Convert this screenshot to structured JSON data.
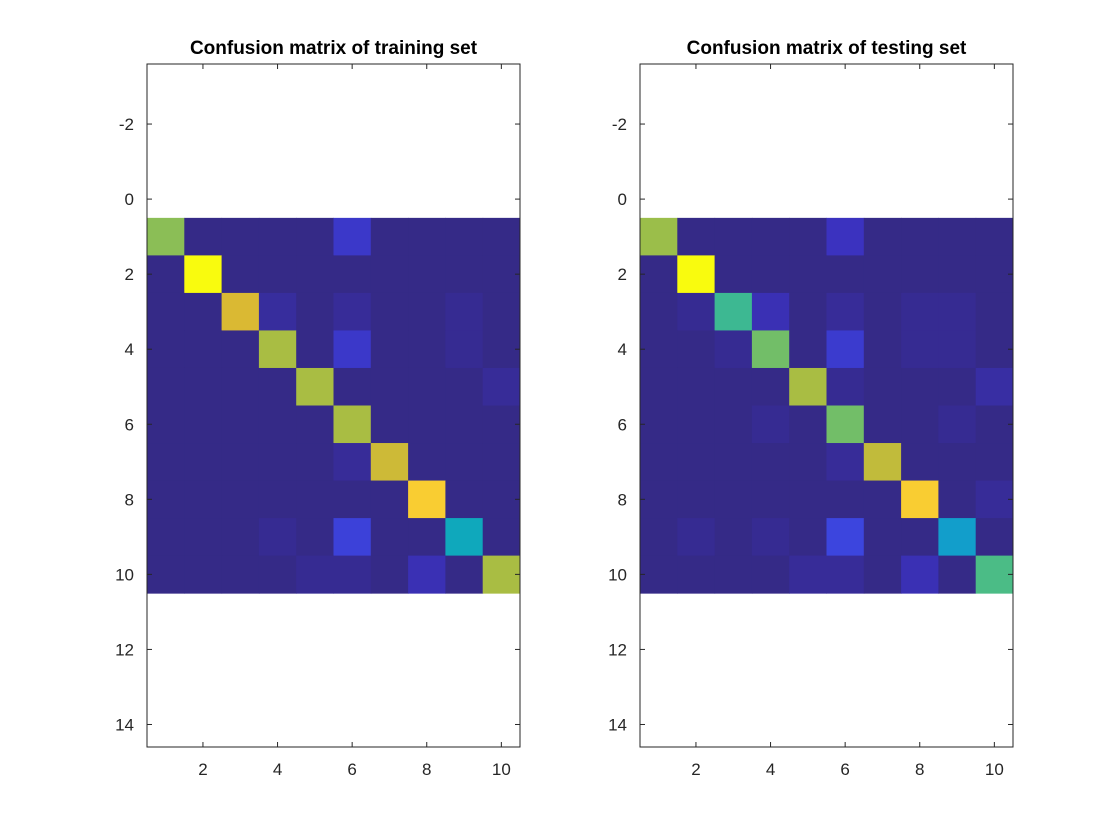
{
  "chart_data": [
    {
      "type": "heatmap",
      "title": "Confusion matrix of training set",
      "xlabel": "",
      "ylabel": "",
      "xlim": [
        0.5,
        10.5
      ],
      "ylim": [
        -3.6,
        14.6
      ],
      "y_reversed": true,
      "xticks": [
        2,
        4,
        6,
        8,
        10
      ],
      "yticks": [
        -2,
        0,
        2,
        4,
        6,
        8,
        10,
        12,
        14
      ],
      "colormap": "parula",
      "grid": false,
      "matrix": [
        [
          0.68,
          0.02,
          0.02,
          0.02,
          0.02,
          0.14,
          0.02,
          0.02,
          0.02,
          0.02
        ],
        [
          0.02,
          1.0,
          0.02,
          0.02,
          0.02,
          0.02,
          0.02,
          0.02,
          0.02,
          0.02
        ],
        [
          0.02,
          0.02,
          0.8,
          0.06,
          0.02,
          0.05,
          0.02,
          0.02,
          0.04,
          0.02
        ],
        [
          0.02,
          0.02,
          0.02,
          0.72,
          0.02,
          0.14,
          0.02,
          0.02,
          0.04,
          0.02
        ],
        [
          0.02,
          0.02,
          0.02,
          0.02,
          0.72,
          0.02,
          0.02,
          0.02,
          0.02,
          0.05
        ],
        [
          0.02,
          0.02,
          0.02,
          0.02,
          0.02,
          0.72,
          0.02,
          0.02,
          0.02,
          0.02
        ],
        [
          0.02,
          0.02,
          0.02,
          0.02,
          0.02,
          0.05,
          0.78,
          0.02,
          0.02,
          0.02
        ],
        [
          0.02,
          0.02,
          0.02,
          0.02,
          0.02,
          0.02,
          0.02,
          0.9,
          0.02,
          0.02
        ],
        [
          0.02,
          0.02,
          0.02,
          0.04,
          0.02,
          0.17,
          0.02,
          0.02,
          0.5,
          0.02
        ],
        [
          0.02,
          0.02,
          0.02,
          0.02,
          0.04,
          0.04,
          0.02,
          0.1,
          0.02,
          0.72
        ]
      ]
    },
    {
      "type": "heatmap",
      "title": "Confusion matrix of testing set",
      "xlabel": "",
      "ylabel": "",
      "xlim": [
        0.5,
        10.5
      ],
      "ylim": [
        -3.6,
        14.6
      ],
      "y_reversed": true,
      "xticks": [
        2,
        4,
        6,
        8,
        10
      ],
      "yticks": [
        -2,
        0,
        2,
        4,
        6,
        8,
        10,
        12,
        14
      ],
      "colormap": "parula",
      "grid": false,
      "matrix": [
        [
          0.7,
          0.02,
          0.02,
          0.02,
          0.02,
          0.12,
          0.02,
          0.02,
          0.02,
          0.02
        ],
        [
          0.02,
          1.0,
          0.02,
          0.02,
          0.02,
          0.02,
          0.02,
          0.02,
          0.02,
          0.02
        ],
        [
          0.02,
          0.04,
          0.58,
          0.1,
          0.02,
          0.05,
          0.02,
          0.04,
          0.04,
          0.02
        ],
        [
          0.02,
          0.02,
          0.04,
          0.65,
          0.02,
          0.15,
          0.02,
          0.04,
          0.04,
          0.02
        ],
        [
          0.02,
          0.02,
          0.02,
          0.02,
          0.72,
          0.04,
          0.02,
          0.02,
          0.02,
          0.07
        ],
        [
          0.02,
          0.02,
          0.02,
          0.04,
          0.02,
          0.65,
          0.02,
          0.02,
          0.04,
          0.02
        ],
        [
          0.02,
          0.02,
          0.02,
          0.02,
          0.02,
          0.05,
          0.76,
          0.02,
          0.02,
          0.02
        ],
        [
          0.02,
          0.02,
          0.02,
          0.02,
          0.02,
          0.02,
          0.02,
          0.9,
          0.02,
          0.05
        ],
        [
          0.02,
          0.04,
          0.02,
          0.04,
          0.02,
          0.18,
          0.02,
          0.02,
          0.45,
          0.02
        ],
        [
          0.02,
          0.02,
          0.02,
          0.02,
          0.05,
          0.05,
          0.02,
          0.1,
          0.02,
          0.6
        ]
      ]
    }
  ]
}
